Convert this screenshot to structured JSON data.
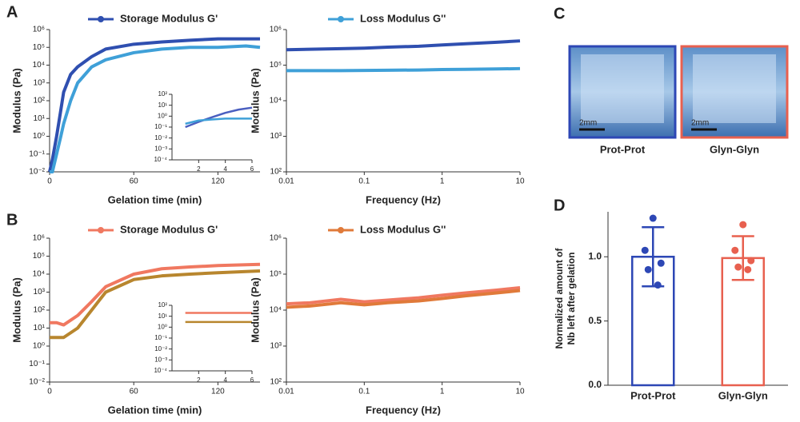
{
  "chart_data": [
    {
      "type": "line",
      "panel": "A",
      "xlabel": "Gelation time (min)",
      "ylabel": "Modulus (Pa)",
      "ylog": true,
      "x": [
        0,
        2,
        5,
        8,
        10,
        15,
        20,
        30,
        40,
        60,
        80,
        100,
        120,
        140,
        150
      ],
      "xlim": [
        0,
        150
      ],
      "xticks": [
        0,
        60,
        120
      ],
      "ylim": [
        0.01,
        1000000
      ],
      "yticks": [
        {
          "value": 1000000,
          "label": "10⁶"
        },
        {
          "value": 100000,
          "label": "10⁵"
        },
        {
          "value": 10000,
          "label": "10⁴"
        },
        {
          "value": 1000,
          "label": "10³"
        },
        {
          "value": 100,
          "label": "10²"
        },
        {
          "value": 10,
          "label": "10¹"
        },
        {
          "value": 1,
          "label": "10⁰"
        },
        {
          "value": 0.1,
          "label": "10⁻¹"
        },
        {
          "value": 0.01,
          "label": "10⁻²"
        }
      ],
      "series": [
        {
          "name": "Storage Modulus G'",
          "color": "#2f4fb0",
          "values": [
            0.01,
            0.05,
            1,
            30,
            300,
            3000,
            8000,
            30000,
            80000,
            150000,
            200000,
            250000,
            300000,
            300000,
            300000
          ]
        },
        {
          "color": "#3fa0d8",
          "values": [
            0.01,
            0.01,
            0.1,
            1,
            5,
            100,
            1000,
            8000,
            20000,
            50000,
            80000,
            100000,
            100000,
            120000,
            100000
          ]
        }
      ]
    },
    {
      "type": "line",
      "ylog": true,
      "x": [
        1,
        2,
        3,
        4,
        5,
        6
      ],
      "xlim": [
        0,
        6
      ],
      "xticks": [
        2,
        4,
        6
      ],
      "ylim": [
        0.0001,
        100
      ],
      "yticks": [
        {
          "value": 100,
          "label": "10²"
        },
        {
          "value": 10,
          "label": "10¹"
        },
        {
          "value": 1,
          "label": "10⁰"
        },
        {
          "value": 0.1,
          "label": "10⁻¹"
        },
        {
          "value": 0.01,
          "label": "10⁻²"
        },
        {
          "value": 0.001,
          "label": "10⁻³"
        },
        {
          "value": 0.0001,
          "label": "10⁻⁴"
        }
      ],
      "series": [
        {
          "color": "#4a5fc0",
          "values": [
            0.1,
            0.3,
            0.8,
            2,
            4,
            6
          ]
        },
        {
          "color": "#3fa0d8",
          "values": [
            0.2,
            0.4,
            0.5,
            0.6,
            0.6,
            0.6
          ]
        }
      ]
    },
    {
      "type": "line",
      "xlabel": "Frequency (Hz)",
      "ylabel": "Modulus (Pa)",
      "ylog": true,
      "xlog": true,
      "x": [
        0.01,
        0.02,
        0.05,
        0.1,
        0.2,
        0.5,
        1,
        2,
        5,
        10
      ],
      "xlim": [
        0.01,
        10
      ],
      "xticks": [
        0.01,
        0.1,
        1,
        10
      ],
      "ylim": [
        100,
        1000000
      ],
      "yticks": [
        {
          "value": 1000000,
          "label": "10⁶"
        },
        {
          "value": 100000,
          "label": "10⁵"
        },
        {
          "value": 10000,
          "label": "10⁴"
        },
        {
          "value": 1000,
          "label": "10³"
        },
        {
          "value": 100,
          "label": "10²"
        }
      ],
      "series": [
        {
          "color": "#2f4fb0",
          "values": [
            270000,
            280000,
            290000,
            300000,
            320000,
            340000,
            370000,
            400000,
            440000,
            480000
          ]
        },
        {
          "name": "Loss Modulus G''",
          "color": "#3fa0d8",
          "values": [
            70000,
            70000,
            70000,
            71000,
            72000,
            73000,
            75000,
            76000,
            78000,
            80000
          ]
        }
      ]
    },
    {
      "type": "line",
      "panel": "B",
      "xlabel": "Gelation time (min)",
      "ylabel": "Modulus (Pa)",
      "ylog": true,
      "x": [
        0,
        5,
        10,
        20,
        30,
        40,
        60,
        80,
        100,
        120,
        150
      ],
      "xlim": [
        0,
        150
      ],
      "xticks": [
        0,
        60,
        120
      ],
      "ylim": [
        0.01,
        1000000
      ],
      "yticks": [
        {
          "value": 1000000,
          "label": "10⁶"
        },
        {
          "value": 100000,
          "label": "10⁵"
        },
        {
          "value": 10000,
          "label": "10⁴"
        },
        {
          "value": 1000,
          "label": "10³"
        },
        {
          "value": 100,
          "label": "10²"
        },
        {
          "value": 10,
          "label": "10¹"
        },
        {
          "value": 1,
          "label": "10⁰"
        },
        {
          "value": 0.1,
          "label": "10⁻¹"
        },
        {
          "value": 0.01,
          "label": "10⁻²"
        }
      ],
      "series": [
        {
          "name": "Storage Modulus G'",
          "color": "#f07860",
          "values": [
            20,
            20,
            15,
            50,
            300,
            2000,
            10000,
            20000,
            25000,
            30000,
            35000
          ]
        },
        {
          "color": "#b8862e",
          "values": [
            3,
            3,
            3,
            10,
            100,
            1000,
            5000,
            8000,
            10000,
            12000,
            15000
          ]
        }
      ]
    },
    {
      "type": "line",
      "ylog": true,
      "x": [
        1,
        2,
        3,
        4,
        5,
        6
      ],
      "xlim": [
        0,
        6
      ],
      "xticks": [
        2,
        4,
        6
      ],
      "ylim": [
        0.0001,
        100
      ],
      "yticks": [
        {
          "value": 100,
          "label": "10²"
        },
        {
          "value": 10,
          "label": "10¹"
        },
        {
          "value": 1,
          "label": "10⁰"
        },
        {
          "value": 0.1,
          "label": "10⁻¹"
        },
        {
          "value": 0.01,
          "label": "10⁻²"
        },
        {
          "value": 0.001,
          "label": "10⁻³"
        },
        {
          "value": 0.0001,
          "label": "10⁻⁴"
        }
      ],
      "series": [
        {
          "color": "#f07860",
          "values": [
            20,
            20,
            20,
            20,
            20,
            20
          ]
        },
        {
          "color": "#b8862e",
          "values": [
            3,
            3,
            3,
            3,
            3,
            3
          ]
        }
      ]
    },
    {
      "type": "line",
      "xlabel": "Frequency (Hz)",
      "ylabel": "Modulus (Pa)",
      "ylog": true,
      "xlog": true,
      "x": [
        0.01,
        0.02,
        0.05,
        0.1,
        0.2,
        0.5,
        1,
        2,
        5,
        10
      ],
      "xlim": [
        0.01,
        10
      ],
      "xticks": [
        0.01,
        0.1,
        1,
        10
      ],
      "ylim": [
        100,
        1000000
      ],
      "yticks": [
        {
          "value": 1000000,
          "label": "10⁶"
        },
        {
          "value": 100000,
          "label": "10⁵"
        },
        {
          "value": 10000,
          "label": "10⁴"
        },
        {
          "value": 1000,
          "label": "10³"
        },
        {
          "value": 100,
          "label": "10²"
        }
      ],
      "series": [
        {
          "color": "#f07860",
          "values": [
            15000,
            16000,
            20000,
            17000,
            19000,
            22000,
            26000,
            30000,
            36000,
            42000
          ]
        },
        {
          "name": "Loss Modulus G''",
          "color": "#e07a3a",
          "values": [
            12000,
            13000,
            16000,
            14000,
            16000,
            18000,
            21000,
            25000,
            30000,
            35000
          ]
        }
      ]
    },
    {
      "type": "image",
      "panel": "C",
      "labels": [
        "Prot-Prot",
        "Glyn-Glyn"
      ],
      "scale_bar": "2mm",
      "colors": [
        "#2d47b5",
        "#e8604f"
      ]
    },
    {
      "type": "bar",
      "panel": "D",
      "ylabel": [
        "Normalized amount of",
        "Nb left after gelation"
      ],
      "categories": [
        "Prot-Prot",
        "Glyn-Glyn"
      ],
      "colors": [
        "#2d47b5",
        "#e8604f"
      ],
      "values": [
        1.0,
        0.99
      ],
      "errors": [
        0.23,
        0.17
      ],
      "points": [
        [
          1.3,
          1.05,
          0.95,
          0.9,
          0.78
        ],
        [
          1.25,
          1.05,
          0.97,
          0.92,
          0.9
        ]
      ],
      "ylim": [
        0,
        1.35
      ],
      "yticks": [
        {
          "value": 0,
          "label": "0.0"
        },
        {
          "value": 0.5,
          "label": "0.5"
        },
        {
          "value": 1,
          "label": "1.0"
        }
      ]
    }
  ]
}
